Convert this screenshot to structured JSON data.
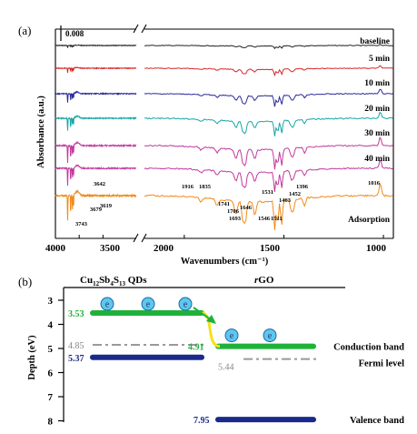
{
  "chart_data": [
    {
      "type": "line",
      "panel_label": "(a)",
      "xlabel": "Wavenumbers (cm⁻¹)",
      "ylabel": "Absorbance (a.u.)",
      "xlim": [
        4000,
        950
      ],
      "x_break": [
        2300,
        2200
      ],
      "x_ticks": [
        "4000",
        "3500",
        "3000",
        "2000",
        "1500",
        "1000"
      ],
      "scale_bar_label": "0.008",
      "series": [
        {
          "name": "baseline",
          "color": "#222222",
          "amp": 0.2
        },
        {
          "name": "5 min",
          "color": "#d62828",
          "amp": 0.45
        },
        {
          "name": "10 min",
          "color": "#2a2a9a",
          "amp": 0.85
        },
        {
          "name": "20 min",
          "color": "#1aa5a5",
          "amp": 1.2
        },
        {
          "name": "30 min",
          "color": "#c23a9e",
          "amp": 1.6
        },
        {
          "name": "40 min",
          "color": "#c23a9e",
          "amp": 1.6
        },
        {
          "name": "Adsorption",
          "color": "#f08a1c",
          "amp": 2.3
        }
      ],
      "annotations": [
        "3743",
        "3679",
        "3642",
        "3619",
        "1916",
        "1835",
        "1741",
        "1706",
        "1693",
        "1646",
        "1546",
        "1531",
        "1511",
        "1463",
        "1452",
        "1396",
        "1016"
      ]
    },
    {
      "type": "diagram",
      "panel_label": "(b)",
      "ylabel": "Depth (eV)",
      "ylim": [
        3,
        8
      ],
      "y_ticks": [
        "3",
        "4",
        "5",
        "6",
        "7",
        "8"
      ],
      "materials": [
        "Cu12Sb4S13 QDs",
        "rGO"
      ],
      "levels": [
        {
          "label": "3.53",
          "value": 3.53,
          "color": "#1fb23a"
        },
        {
          "label": "4.85",
          "value": 4.85,
          "color": "#999999"
        },
        {
          "label": "5.37",
          "value": 5.37,
          "color": "#1a2a8a"
        },
        {
          "label": "4.91",
          "value": 4.91,
          "color": "#1fb23a"
        },
        {
          "label": "5.44",
          "value": 5.44,
          "color": "#999999"
        },
        {
          "label": "7.95",
          "value": 7.95,
          "color": "#1a2a8a"
        }
      ],
      "band_labels": {
        "conduction": "Conduction band",
        "fermi": "Fermi level",
        "valence": "Valence band"
      },
      "electron_symbol": "e"
    }
  ]
}
